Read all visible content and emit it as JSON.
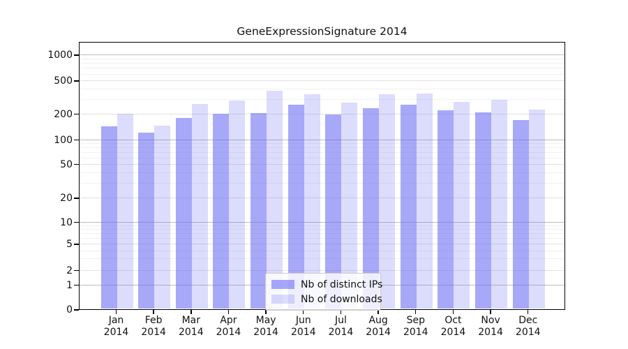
{
  "chart_data": {
    "type": "bar",
    "title": "GeneExpressionSignature 2014",
    "categories": [
      "Jan",
      "Feb",
      "Mar",
      "Apr",
      "May",
      "Jun",
      "Jul",
      "Aug",
      "Sep",
      "Oct",
      "Nov",
      "Dec"
    ],
    "year": "2014",
    "series": [
      {
        "name": "Nb of distinct IPs",
        "color": "rgba(105,105,245,0.58)",
        "values": [
          143,
          120,
          178,
          198,
          205,
          255,
          195,
          232,
          256,
          218,
          209,
          169
        ]
      },
      {
        "name": "Nb of downloads",
        "color": "rgba(105,105,245,0.23)",
        "values": [
          200,
          146,
          264,
          290,
          380,
          345,
          274,
          345,
          352,
          277,
          296,
          222
        ]
      }
    ],
    "xlabel": "",
    "ylabel": "",
    "yscale": "symlog",
    "ylim": [
      0,
      1400
    ],
    "grid": true,
    "legend_position": "lower center",
    "ytick_labels": [
      "1000",
      "500",
      "200",
      "100",
      "50",
      "20",
      "10",
      "5",
      "2",
      "1",
      "0"
    ],
    "ytick_values": [
      1000,
      500,
      200,
      100,
      50,
      20,
      10,
      5,
      2,
      1,
      0
    ],
    "major_grid_values": [
      1,
      10,
      100,
      1000
    ],
    "sub_grid_values": [
      2,
      5,
      20,
      50,
      200,
      500
    ],
    "minor_grid_values": [
      3,
      4,
      6,
      7,
      8,
      9,
      30,
      40,
      60,
      70,
      80,
      90,
      300,
      400,
      600,
      700,
      800,
      900
    ]
  }
}
